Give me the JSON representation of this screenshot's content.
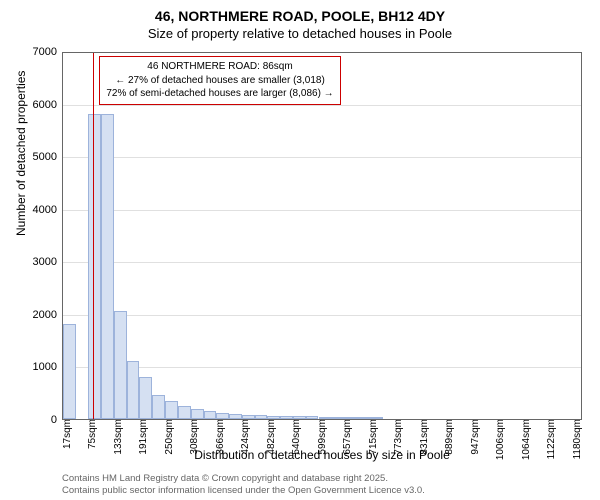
{
  "title_main": "46, NORTHMERE ROAD, POOLE, BH12 4DY",
  "title_sub": "Size of property relative to detached houses in Poole",
  "chart": {
    "type": "histogram",
    "ylabel": "Number of detached properties",
    "xlabel": "Distribution of detached houses by size in Poole",
    "ylim": [
      0,
      7000
    ],
    "ytick_step": 1000,
    "yticks": [
      0,
      1000,
      2000,
      3000,
      4000,
      5000,
      6000,
      7000
    ],
    "x_start": 17,
    "x_end": 1200,
    "x_tick_step": 58,
    "x_tick_labels": [
      "17sqm",
      "75sqm",
      "133sqm",
      "191sqm",
      "250sqm",
      "308sqm",
      "366sqm",
      "424sqm",
      "482sqm",
      "540sqm",
      "599sqm",
      "657sqm",
      "715sqm",
      "773sqm",
      "831sqm",
      "889sqm",
      "947sqm",
      "1006sqm",
      "1064sqm",
      "1122sqm",
      "1180sqm"
    ],
    "bin_width": 29,
    "bar_color": "#d5e0f2",
    "bar_border_color": "#9db3db",
    "background_color": "#ffffff",
    "grid_color": "#e0e0e0",
    "bars": [
      {
        "x": 17,
        "v": 1800
      },
      {
        "x": 75,
        "v": 5800
      },
      {
        "x": 104,
        "v": 5800
      },
      {
        "x": 133,
        "v": 2050
      },
      {
        "x": 162,
        "v": 1100
      },
      {
        "x": 191,
        "v": 800
      },
      {
        "x": 220,
        "v": 450
      },
      {
        "x": 250,
        "v": 350
      },
      {
        "x": 279,
        "v": 250
      },
      {
        "x": 308,
        "v": 200
      },
      {
        "x": 337,
        "v": 150
      },
      {
        "x": 366,
        "v": 120
      },
      {
        "x": 395,
        "v": 100
      },
      {
        "x": 424,
        "v": 80
      },
      {
        "x": 453,
        "v": 80
      },
      {
        "x": 482,
        "v": 60
      },
      {
        "x": 511,
        "v": 60
      },
      {
        "x": 540,
        "v": 50
      },
      {
        "x": 569,
        "v": 50
      },
      {
        "x": 599,
        "v": 40
      },
      {
        "x": 628,
        "v": 30
      },
      {
        "x": 657,
        "v": 30
      },
      {
        "x": 686,
        "v": 25
      },
      {
        "x": 715,
        "v": 20
      }
    ],
    "marker": {
      "x_value": 86,
      "color": "#cc0000"
    },
    "annotation": {
      "line1": "46 NORTHMERE ROAD: 86sqm",
      "line2": "← 27% of detached houses are smaller (3,018)",
      "line3": "72% of semi-detached houses are larger (8,086) →"
    }
  },
  "footer": {
    "line1": "Contains HM Land Registry data © Crown copyright and database right 2025.",
    "line2": "Contains public sector information licensed under the Open Government Licence v3.0."
  }
}
